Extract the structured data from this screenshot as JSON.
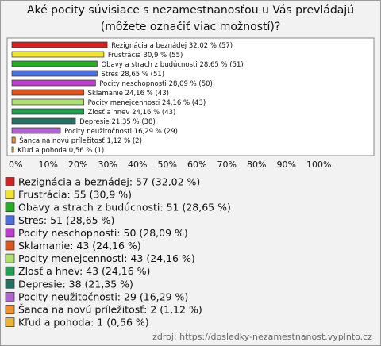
{
  "chart_data": {
    "type": "bar",
    "title": "Aké pocity súvisiace s nezamestnanosťou u Vás prevládajú (môžete označiť viac možností)?",
    "categories": [
      "Rezignácia a beznádej",
      "Frustrácia",
      "Obavy a strach z budúcnosti",
      "Stres",
      "Pocity neschopnosti",
      "Sklamanie",
      "Pocity menejcennosti",
      "Zlosť a hnev",
      "Depresie",
      "Pocity neužitočnosti",
      "Šanca na novú príležitosť",
      "Kľud a pohoda"
    ],
    "values": [
      32.02,
      30.9,
      28.65,
      28.65,
      28.09,
      24.16,
      24.16,
      24.16,
      21.35,
      16.29,
      1.12,
      0.56
    ],
    "value_labels": [
      "32,02 % (57)",
      "30,9 % (55)",
      "28,65 % (51)",
      "28,65 % (51)",
      "28,09 % (50)",
      "24,16 % (43)",
      "24,16 % (43)",
      "24,16 % (43)",
      "21,35 % (38)",
      "16,29 % (29)",
      "1,12 % (2)",
      "0,56 % (1)"
    ],
    "legend_labels": [
      "Rezignácia a beznádej: 57 (32,02 %)",
      "Frustrácia: 55 (30,9 %)",
      "Obavy a strach z budúcnosti: 51 (28,65 %)",
      "Stres: 51 (28,65 %)",
      "Pocity neschopnosti: 50 (28,09 %)",
      "Sklamanie: 43 (24,16 %)",
      "Pocity menejcennosti: 43 (24,16 %)",
      "Zlosť a hnev: 43 (24,16 %)",
      "Depresie: 38 (21,35 %)",
      "Pocity neužitočnosti: 29 (16,29 %)",
      "Šanca na novú príležitosť: 2 (1,12 %)",
      "Kľud a pohoda: 1 (0,56 %)"
    ],
    "colors": [
      "#d42222",
      "#f2e42c",
      "#22b022",
      "#4a6fe0",
      "#c03cd0",
      "#e0541c",
      "#aee06c",
      "#22a052",
      "#207262",
      "#b064d0",
      "#f09030",
      "#e8b432"
    ],
    "xlim": [
      0,
      100
    ],
    "xticks": [
      {
        "value": 0,
        "label": "0%"
      },
      {
        "value": 10,
        "label": "10%"
      },
      {
        "value": 20,
        "label": "20%"
      },
      {
        "value": 30,
        "label": "30%"
      },
      {
        "value": 40,
        "label": "40%"
      },
      {
        "value": 50,
        "label": "50%"
      },
      {
        "value": 60,
        "label": "60%"
      },
      {
        "value": 70,
        "label": "70%"
      },
      {
        "value": 80,
        "label": "80%"
      },
      {
        "value": 90,
        "label": "90%"
      },
      {
        "value": 100,
        "label": "100%"
      }
    ],
    "source": "zdroj: https://dosledky-nezamestnanost.vyplnto.cz"
  }
}
